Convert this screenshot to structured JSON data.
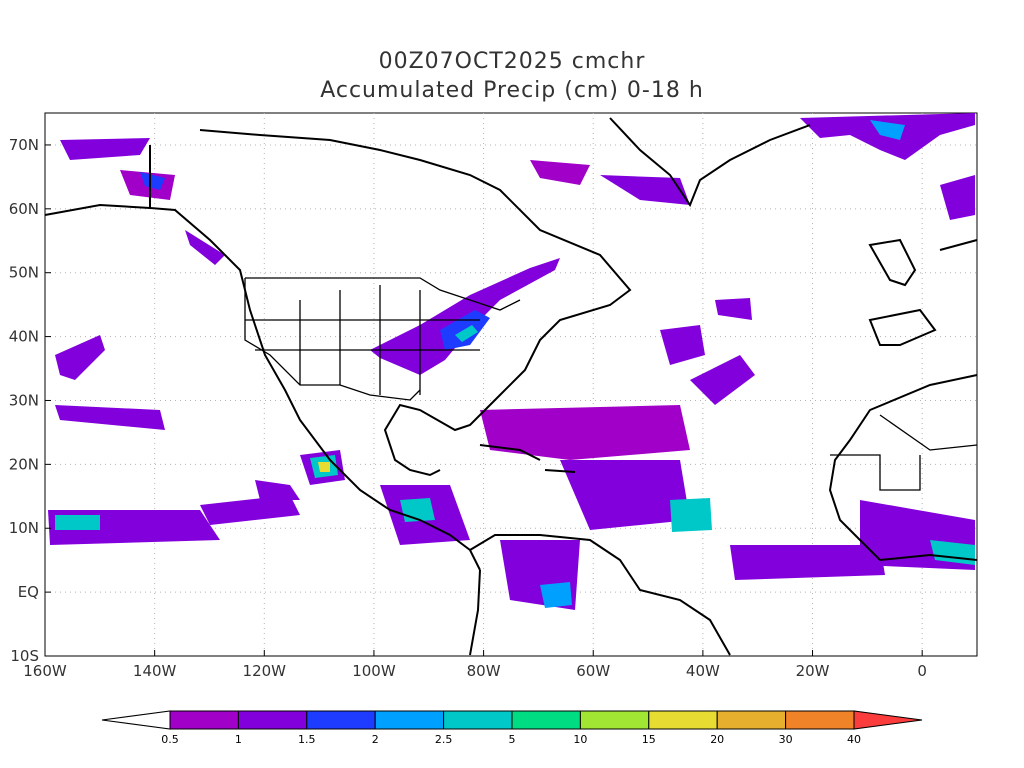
{
  "title": {
    "line1": "00Z07OCT2025 cmchr",
    "line2": "Accumulated Precip (cm) 0-18 h"
  },
  "axes": {
    "lon_ticks": [
      "160W",
      "140W",
      "120W",
      "100W",
      "80W",
      "60W",
      "40W",
      "20W",
      "0"
    ],
    "lat_ticks": [
      "70N",
      "60N",
      "50N",
      "40N",
      "30N",
      "20N",
      "10N",
      "EQ",
      "10S"
    ],
    "lon_range": [
      -160,
      10
    ],
    "lat_range": [
      -10,
      75
    ],
    "grid": true
  },
  "colorbar": {
    "labels": [
      "0.5",
      "1",
      "1.5",
      "2",
      "2.5",
      "5",
      "10",
      "15",
      "20",
      "30",
      "40"
    ],
    "colors": [
      "#ffffff",
      "#a000c8",
      "#8200dc",
      "#1e3cff",
      "#00a0ff",
      "#00c8c8",
      "#00dc82",
      "#a0e632",
      "#e6dc32",
      "#e6af2d",
      "#f08228",
      "#fa3c3c"
    ]
  },
  "map_colors": {
    "land_outline": "#000000",
    "grid": "#b4b4b4"
  }
}
